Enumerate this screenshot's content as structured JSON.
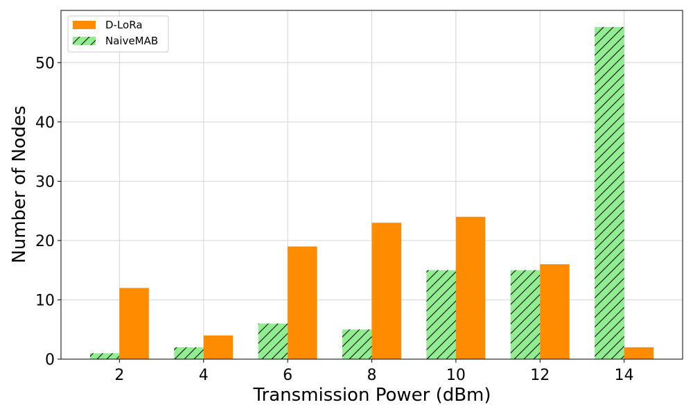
{
  "chart_data": {
    "type": "bar",
    "categories": [
      "2",
      "4",
      "6",
      "8",
      "10",
      "12",
      "14"
    ],
    "series": [
      {
        "name": "NaiveMAB",
        "values": [
          1,
          2,
          6,
          5,
          15,
          15,
          56
        ],
        "color": "#90ee90",
        "hatch": "diagonal"
      },
      {
        "name": "D-LoRa",
        "values": [
          12,
          4,
          19,
          23,
          24,
          16,
          2
        ],
        "color": "#ff8c00"
      }
    ],
    "xlabel": "Transmission Power (dBm)",
    "ylabel": "Number of Nodes",
    "ylim": [
      0,
      58.8
    ],
    "yticks": [
      0,
      10,
      20,
      30,
      40,
      50
    ],
    "grid": true,
    "legend": {
      "placement": "top-left",
      "order": [
        "D-LoRa",
        "NaiveMAB"
      ]
    }
  }
}
